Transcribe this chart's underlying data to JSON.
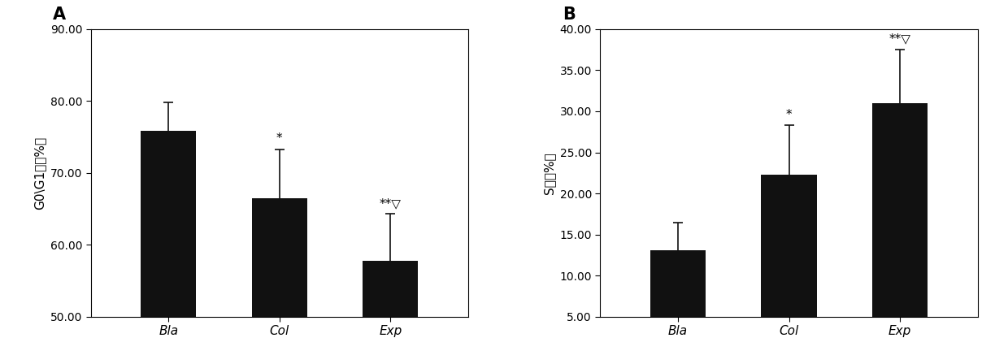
{
  "panel_A": {
    "label": "A",
    "categories": [
      "Bla",
      "Col",
      "Exp"
    ],
    "values": [
      75.8,
      66.5,
      57.8
    ],
    "errors": [
      4.0,
      6.8,
      6.5
    ],
    "ylabel_parts": [
      "G0\\G1",
      "期（%）"
    ],
    "ylim": [
      50.0,
      90.0
    ],
    "yticks": [
      50.0,
      60.0,
      70.0,
      80.0,
      90.0
    ],
    "annotations": [
      "",
      "*",
      "**▽"
    ],
    "bar_color": "#111111",
    "error_color": "#111111"
  },
  "panel_B": {
    "label": "B",
    "categories": [
      "Bla",
      "Col",
      "Exp"
    ],
    "values": [
      13.1,
      22.3,
      31.0
    ],
    "errors": [
      3.3,
      6.0,
      6.5
    ],
    "ylabel_parts": [
      "S",
      "期（%）"
    ],
    "ylim": [
      5.0,
      40.0
    ],
    "yticks": [
      5.0,
      10.0,
      15.0,
      20.0,
      25.0,
      30.0,
      35.0,
      40.0
    ],
    "annotations": [
      "",
      "*",
      "**▽"
    ],
    "bar_color": "#111111",
    "error_color": "#111111"
  },
  "background_color": "#ffffff",
  "fig_width": 12.4,
  "fig_height": 4.48,
  "dpi": 100
}
